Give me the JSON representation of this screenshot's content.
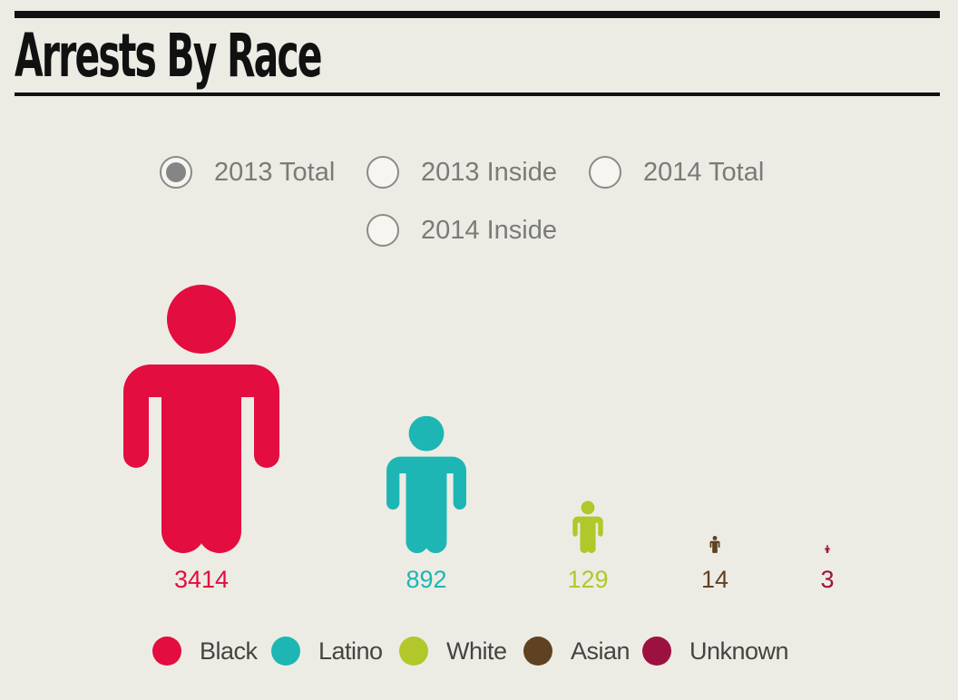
{
  "title": "Arrests By Race",
  "controls": {
    "options": [
      "2013 Total",
      "2013 Inside",
      "2014 Total",
      "2014 Inside"
    ],
    "selected": "2013 Total"
  },
  "chart_data": {
    "type": "bar",
    "title": "Arrests By Race",
    "categories": [
      "Black",
      "Latino",
      "White",
      "Asian",
      "Unknown"
    ],
    "values": [
      3414,
      892,
      129,
      14,
      3
    ],
    "value_labels": [
      "3414",
      "892",
      "129",
      "14",
      "3"
    ],
    "colors": [
      "#e30d40",
      "#1db6b4",
      "#b1c72a",
      "#5f4222",
      "#9d1140"
    ],
    "marker": "person-icon",
    "legend": {
      "placement": "bottom",
      "entries": [
        "Black",
        "Latino",
        "White",
        "Asian",
        "Unknown"
      ]
    }
  }
}
